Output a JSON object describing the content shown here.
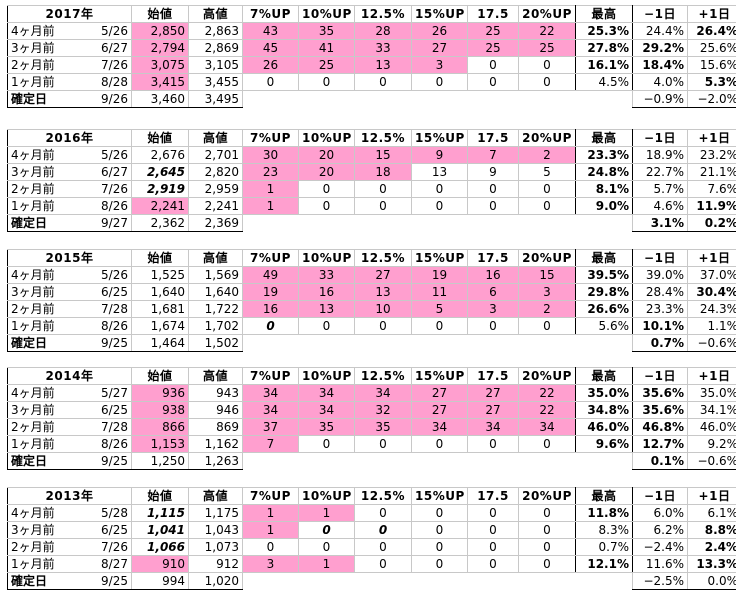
{
  "columns": [
    "始値",
    "高値",
    "7%UP",
    "10%UP",
    "12.5%",
    "15%UP",
    "17.5",
    "20%UP",
    "最高",
    "−1日",
    "+1日"
  ],
  "blocks": [
    {
      "year": "2017年",
      "rows": [
        {
          "label": "4ヶ月前",
          "date": "5/26",
          "open": "2,850",
          "high": "2,863",
          "levels": [
            "43",
            "35",
            "28",
            "26",
            "25",
            "22"
          ],
          "max": "25.3%",
          "m1": "24.4%",
          "p1": "26.4%"
        },
        {
          "label": "3ヶ月前",
          "date": "6/27",
          "open": "2,794",
          "high": "2,869",
          "levels": [
            "45",
            "41",
            "33",
            "27",
            "25",
            "25"
          ],
          "max": "27.8%",
          "m1": "29.2%",
          "p1": "25.6%"
        },
        {
          "label": "2ヶ月前",
          "date": "7/26",
          "open": "3,075",
          "high": "3,105",
          "levels": [
            "26",
            "25",
            "13",
            "3",
            "0",
            "0"
          ],
          "max": "16.1%",
          "m1": "18.4%",
          "p1": "15.6%"
        },
        {
          "label": "1ヶ月前",
          "date": "8/28",
          "open": "3,415",
          "high": "3,455",
          "levels": [
            "0",
            "0",
            "0",
            "0",
            "0",
            "0"
          ],
          "max": "4.5%",
          "m1": "4.0%",
          "p1": "5.3%"
        },
        {
          "label": "確定日",
          "date": "9/26",
          "open": "3,460",
          "high": "3,495",
          "levels": [
            "",
            "",
            "",
            "",
            "",
            ""
          ],
          "max": "",
          "m1": "−0.9%",
          "p1": "−2.0%"
        }
      ]
    },
    {
      "year": "2016年",
      "rows": [
        {
          "label": "4ヶ月前",
          "date": "5/26",
          "open": "2,676",
          "high": "2,701",
          "levels": [
            "30",
            "20",
            "15",
            "9",
            "7",
            "2"
          ],
          "max": "23.3%",
          "m1": "18.9%",
          "p1": "23.2%"
        },
        {
          "label": "3ヶ月前",
          "date": "6/27",
          "open": "2,645",
          "high": "2,820",
          "levels": [
            "23",
            "20",
            "18",
            "13",
            "9",
            "5"
          ],
          "max": "24.8%",
          "m1": "22.7%",
          "p1": "21.1%"
        },
        {
          "label": "2ヶ月前",
          "date": "7/26",
          "open": "2,919",
          "high": "2,959",
          "levels": [
            "1",
            "0",
            "0",
            "0",
            "0",
            "0"
          ],
          "max": "8.1%",
          "m1": "5.7%",
          "p1": "7.6%"
        },
        {
          "label": "1ヶ月前",
          "date": "8/26",
          "open": "2,241",
          "high": "2,241",
          "levels": [
            "1",
            "0",
            "0",
            "0",
            "0",
            "0"
          ],
          "max": "9.0%",
          "m1": "4.6%",
          "p1": "11.9%"
        },
        {
          "label": "確定日",
          "date": "9/27",
          "open": "2,362",
          "high": "2,369",
          "levels": [
            "",
            "",
            "",
            "",
            "",
            ""
          ],
          "max": "",
          "m1": "3.1%",
          "p1": "0.2%"
        }
      ]
    },
    {
      "year": "2015年",
      "rows": [
        {
          "label": "4ヶ月前",
          "date": "5/26",
          "open": "1,525",
          "high": "1,569",
          "levels": [
            "49",
            "33",
            "27",
            "19",
            "16",
            "15"
          ],
          "max": "39.5%",
          "m1": "39.0%",
          "p1": "37.0%"
        },
        {
          "label": "3ヶ月前",
          "date": "6/25",
          "open": "1,640",
          "high": "1,640",
          "levels": [
            "19",
            "16",
            "13",
            "11",
            "6",
            "3"
          ],
          "max": "29.8%",
          "m1": "28.4%",
          "p1": "30.4%"
        },
        {
          "label": "2ヶ月前",
          "date": "7/28",
          "open": "1,681",
          "high": "1,722",
          "levels": [
            "16",
            "13",
            "10",
            "5",
            "3",
            "2"
          ],
          "max": "26.6%",
          "m1": "23.3%",
          "p1": "24.3%"
        },
        {
          "label": "1ヶ月前",
          "date": "8/26",
          "open": "1,674",
          "high": "1,702",
          "levels": [
            "0",
            "0",
            "0",
            "0",
            "0",
            "0"
          ],
          "max": "5.6%",
          "m1": "10.1%",
          "p1": "1.1%"
        },
        {
          "label": "確定日",
          "date": "9/25",
          "open": "1,464",
          "high": "1,502",
          "levels": [
            "",
            "",
            "",
            "",
            "",
            ""
          ],
          "max": "",
          "m1": "0.7%",
          "p1": "−0.6%"
        }
      ]
    },
    {
      "year": "2014年",
      "rows": [
        {
          "label": "4ヶ月前",
          "date": "5/27",
          "open": "936",
          "high": "943",
          "levels": [
            "34",
            "34",
            "34",
            "27",
            "27",
            "22"
          ],
          "max": "35.0%",
          "m1": "35.6%",
          "p1": "35.0%"
        },
        {
          "label": "3ヶ月前",
          "date": "6/25",
          "open": "938",
          "high": "946",
          "levels": [
            "34",
            "34",
            "32",
            "27",
            "27",
            "22"
          ],
          "max": "34.8%",
          "m1": "35.6%",
          "p1": "34.1%"
        },
        {
          "label": "2ヶ月前",
          "date": "7/28",
          "open": "866",
          "high": "869",
          "levels": [
            "37",
            "35",
            "35",
            "34",
            "34",
            "34"
          ],
          "max": "46.0%",
          "m1": "46.8%",
          "p1": "46.0%"
        },
        {
          "label": "1ヶ月前",
          "date": "8/26",
          "open": "1,153",
          "high": "1,162",
          "levels": [
            "7",
            "0",
            "0",
            "0",
            "0",
            "0"
          ],
          "max": "9.6%",
          "m1": "12.7%",
          "p1": "9.2%"
        },
        {
          "label": "確定日",
          "date": "9/25",
          "open": "1,250",
          "high": "1,263",
          "levels": [
            "",
            "",
            "",
            "",
            "",
            ""
          ],
          "max": "",
          "m1": "0.1%",
          "p1": "−0.6%"
        }
      ]
    },
    {
      "year": "2013年",
      "rows": [
        {
          "label": "4ヶ月前",
          "date": "5/28",
          "open": "1,115",
          "high": "1,175",
          "levels": [
            "1",
            "1",
            "0",
            "0",
            "0",
            "0"
          ],
          "max": "11.8%",
          "m1": "6.0%",
          "p1": "6.1%"
        },
        {
          "label": "3ヶ月前",
          "date": "6/25",
          "open": "1,041",
          "high": "1,043",
          "levels": [
            "1",
            "0",
            "0",
            "0",
            "0",
            "0"
          ],
          "max": "8.3%",
          "m1": "6.2%",
          "p1": "8.8%"
        },
        {
          "label": "2ヶ月前",
          "date": "7/26",
          "open": "1,066",
          "high": "1,073",
          "levels": [
            "0",
            "0",
            "0",
            "0",
            "0",
            "0"
          ],
          "max": "0.7%",
          "m1": "−2.4%",
          "p1": "2.4%"
        },
        {
          "label": "1ヶ月前",
          "date": "8/27",
          "open": "910",
          "high": "912",
          "levels": [
            "3",
            "1",
            "0",
            "0",
            "0",
            "0"
          ],
          "max": "12.1%",
          "m1": "11.6%",
          "p1": "13.3%"
        },
        {
          "label": "確定日",
          "date": "9/25",
          "open": "994",
          "high": "1,020",
          "levels": [
            "",
            "",
            "",
            "",
            "",
            ""
          ],
          "max": "",
          "m1": "−2.5%",
          "p1": "0.0%"
        }
      ]
    }
  ]
}
